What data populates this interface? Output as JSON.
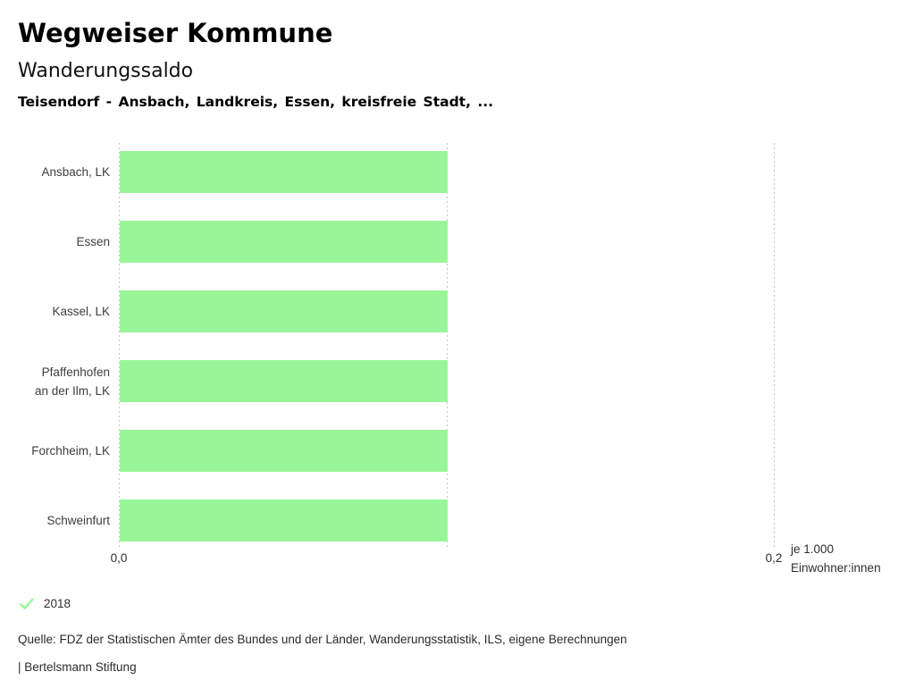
{
  "header": {
    "title": "Wegweiser Kommune",
    "subtitle": "Wanderungssaldo",
    "region_line": "Teisendorf - Ansbach, Landkreis, Essen, kreisfreie Stadt, ..."
  },
  "chart_data": {
    "type": "bar",
    "orientation": "horizontal",
    "title": "Wanderungssaldo",
    "categories": [
      "Ansbach, LK",
      "Essen",
      "Kassel, LK",
      "Pfaffenhofen an der Ilm, LK",
      "Forchheim, LK",
      "Schweinfurt"
    ],
    "category_display_lines": [
      [
        "Ansbach, LK"
      ],
      [
        "Essen"
      ],
      [
        "Kassel, LK"
      ],
      [
        "Pfaffenhofen",
        "an der Ilm, LK"
      ],
      [
        "Forchheim, LK"
      ],
      [
        "Schweinfurt"
      ]
    ],
    "series": [
      {
        "name": "2018",
        "values": [
          0.1,
          0.1,
          0.1,
          0.1,
          0.1,
          0.1
        ]
      }
    ],
    "xlim": [
      0,
      0.2
    ],
    "x_ticks": [
      {
        "value": 0.0,
        "label": "0,0"
      },
      {
        "value": 0.1,
        "label": ""
      },
      {
        "value": 0.2,
        "label": "0,2"
      }
    ],
    "x_unit_lines": [
      "je 1.000",
      "Einwohner:innen"
    ],
    "grid": "vertical-dashed",
    "legend_position": "bottom-left",
    "bar_color": "#98f698"
  },
  "legend": {
    "label": "2018",
    "check_color": "#98f698"
  },
  "footer": {
    "source": "Quelle: FDZ der Statistischen Ämter des Bundes und der Länder, Wanderungsstatistik, ILS, eigene Berechnungen",
    "attribution": "| Bertelsmann Stiftung"
  },
  "colors": {
    "bar": "#98f698",
    "gridline": "#c6c6c6",
    "label_text": "#3d3d3d",
    "title_text": "#000000"
  }
}
